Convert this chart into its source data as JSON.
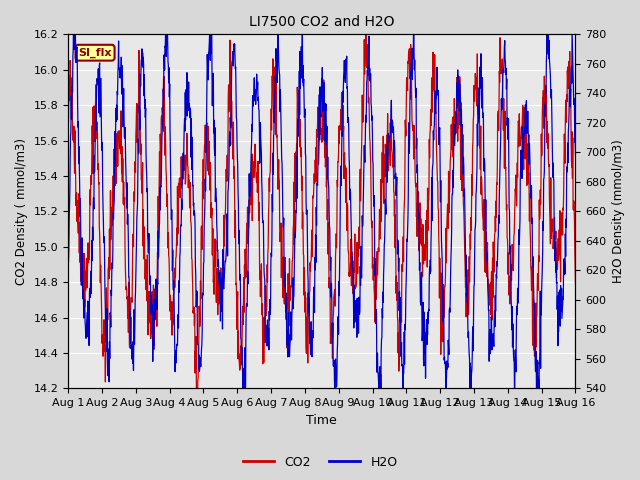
{
  "title": "LI7500 CO2 and H2O",
  "xlabel": "Time",
  "ylabel_left": "CO2 Density ( mmol/m3)",
  "ylabel_right": "H2O Density (mmol/m3)",
  "ylim_left": [
    14.2,
    16.2
  ],
  "ylim_right": [
    540,
    780
  ],
  "yticks_left": [
    14.2,
    14.4,
    14.6,
    14.8,
    15.0,
    15.2,
    15.4,
    15.6,
    15.8,
    16.0,
    16.2
  ],
  "yticks_right": [
    540,
    560,
    580,
    600,
    620,
    640,
    660,
    680,
    700,
    720,
    740,
    760,
    780
  ],
  "xtick_labels": [
    "Aug 1",
    "Aug 2",
    "Aug 3",
    "Aug 4",
    "Aug 5",
    "Aug 6",
    "Aug 7",
    "Aug 8",
    "Aug 9",
    "Aug 10",
    "Aug 11",
    "Aug 12",
    "Aug 13",
    "Aug 14",
    "Aug 15",
    "Aug 16"
  ],
  "n_days": 15,
  "co2_color": "#CC0000",
  "h2o_color": "#0000CC",
  "bg_color": "#D8D8D8",
  "plot_bg_color": "#E8E8E8",
  "legend_label_co2": "CO2",
  "legend_label_h2o": "H2O",
  "annotation_text": "SI_flx",
  "seed": 42,
  "n_points": 1500,
  "co2_base": 15.2,
  "co2_amp": 0.55,
  "h2o_base": 660,
  "h2o_amp": 95
}
